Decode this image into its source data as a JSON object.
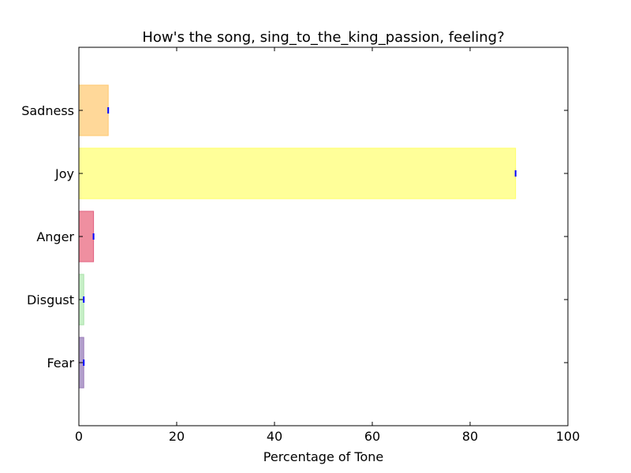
{
  "chart_data": {
    "type": "bar",
    "orientation": "horizontal",
    "title": "How's the song, sing_to_the_king_passion, feeling?",
    "xlabel": "Percentage of Tone",
    "ylabel": "",
    "xlim": [
      0,
      100
    ],
    "xticks": [
      "0",
      "20",
      "40",
      "60",
      "80",
      "100"
    ],
    "grid": false,
    "categories": [
      "Sadness",
      "Joy",
      "Anger",
      "Disgust",
      "Fear"
    ],
    "values": [
      6,
      89.3,
      3,
      1,
      1
    ],
    "colors": [
      "#ffd899",
      "#ffff99",
      "#ef8fa0",
      "#c8f0c8",
      "#b3a0cc"
    ],
    "edge_colors": [
      "#ffc870",
      "#ffff66",
      "#e06080",
      "#a8e0a8",
      "#9a7ab8"
    ],
    "marker_color": "#0000ff"
  }
}
